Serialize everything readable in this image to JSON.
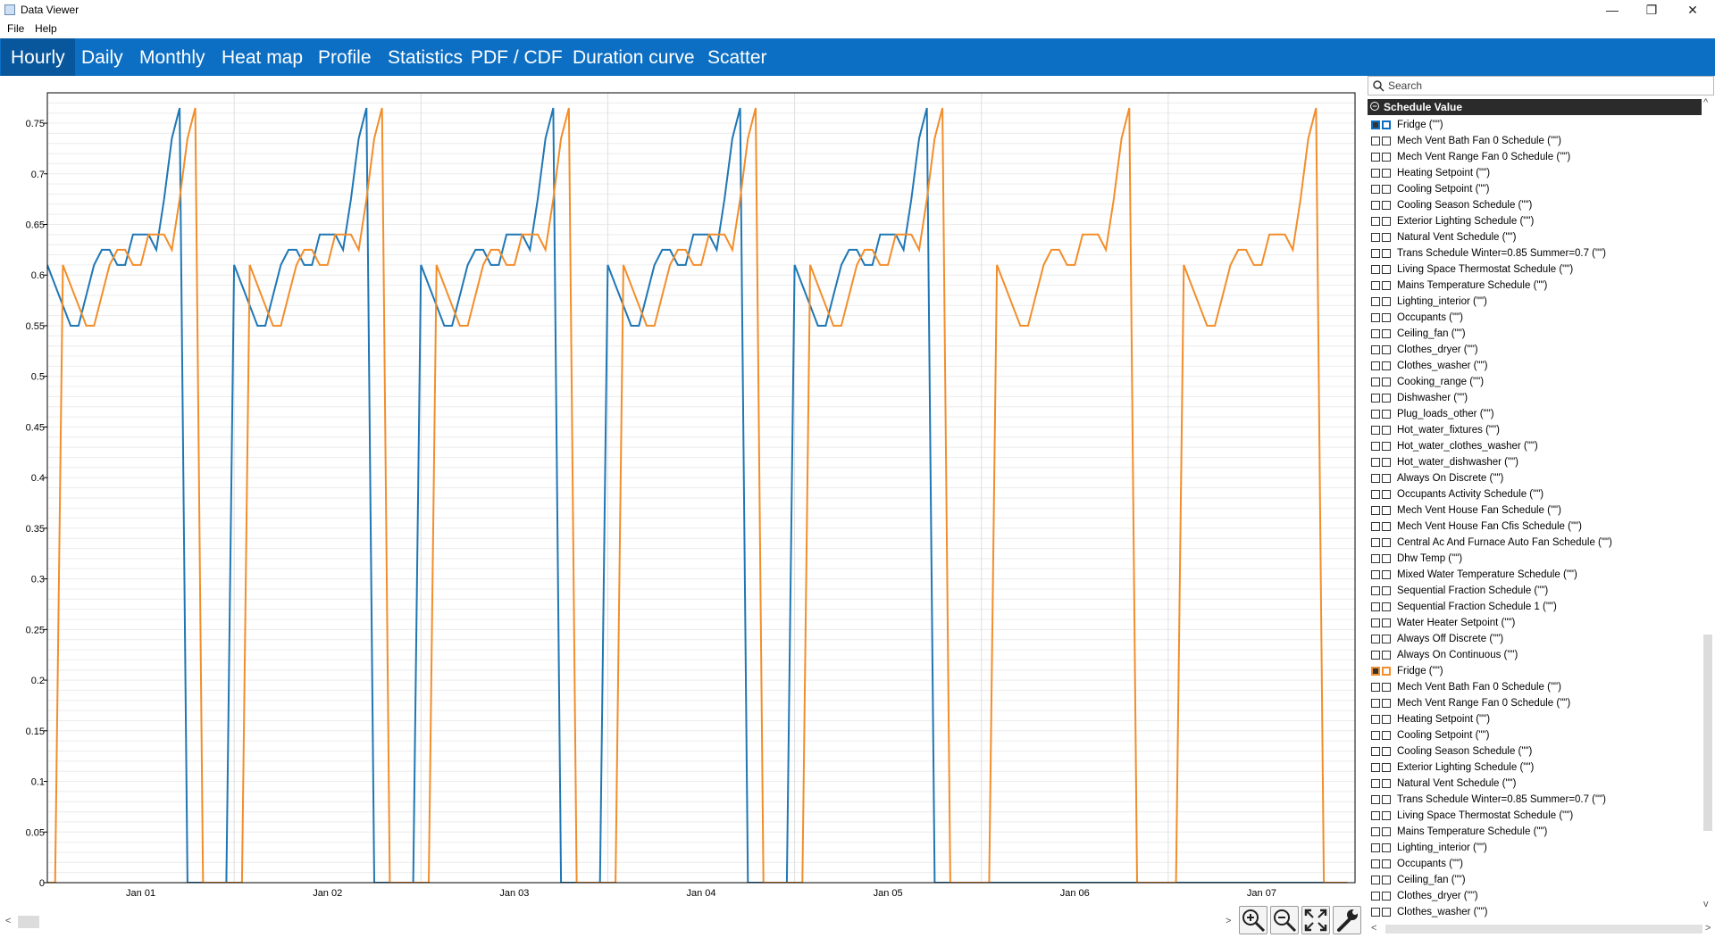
{
  "window": {
    "title": "Data Viewer",
    "minimize": "—",
    "restore": "❐",
    "close": "✕"
  },
  "menu": [
    "File",
    "Help"
  ],
  "tabs": [
    {
      "label": "Hourly",
      "active": true
    },
    {
      "label": "Daily"
    },
    {
      "label": "Monthly"
    },
    {
      "label": "Heat map"
    },
    {
      "label": "Profile"
    },
    {
      "label": "Statistics"
    },
    {
      "label": "PDF / CDF"
    },
    {
      "label": "Duration curve"
    },
    {
      "label": "Scatter"
    }
  ],
  "search": {
    "placeholder": "Search"
  },
  "group": {
    "label": "Schedule Value",
    "icon": "collapse-icon"
  },
  "series_list": [
    "Fridge (\"\")",
    "Mech Vent Bath Fan 0 Schedule (\"\")",
    "Mech Vent Range Fan 0 Schedule (\"\")",
    "Heating Setpoint (\"\")",
    "Cooling Setpoint (\"\")",
    "Cooling Season Schedule (\"\")",
    "Exterior Lighting Schedule (\"\")",
    "Natural Vent Schedule (\"\")",
    "Trans Schedule Winter=0.85 Summer=0.7 (\"\")",
    "Living Space Thermostat Schedule (\"\")",
    "Mains Temperature Schedule (\"\")",
    "Lighting_interior (\"\")",
    "Occupants (\"\")",
    "Ceiling_fan (\"\")",
    "Clothes_dryer (\"\")",
    "Clothes_washer (\"\")",
    "Cooking_range (\"\")",
    "Dishwasher (\"\")",
    "Plug_loads_other (\"\")",
    "Hot_water_fixtures (\"\")",
    "Hot_water_clothes_washer (\"\")",
    "Hot_water_dishwasher (\"\")",
    "Always On Discrete (\"\")",
    "Occupants Activity Schedule (\"\")",
    "Mech Vent House Fan Schedule (\"\")",
    "Mech Vent House Fan Cfis Schedule (\"\")",
    "Central Ac And Furnace Auto Fan Schedule (\"\")",
    "Dhw Temp (\"\")",
    "Mixed Water Temperature Schedule (\"\")",
    "Sequential Fraction Schedule (\"\")",
    "Sequential Fraction Schedule 1 (\"\")",
    "Water Heater Setpoint (\"\")",
    "Always Off Discrete (\"\")",
    "Always On Continuous (\"\")",
    "Fridge (\"\")",
    "Mech Vent Bath Fan 0 Schedule (\"\")",
    "Mech Vent Range Fan 0 Schedule (\"\")",
    "Heating Setpoint (\"\")",
    "Cooling Setpoint (\"\")",
    "Cooling Season Schedule (\"\")",
    "Exterior Lighting Schedule (\"\")",
    "Natural Vent Schedule (\"\")",
    "Trans Schedule Winter=0.85 Summer=0.7 (\"\")",
    "Living Space Thermostat Schedule (\"\")",
    "Mains Temperature Schedule (\"\")",
    "Lighting_interior (\"\")",
    "Occupants (\"\")",
    "Ceiling_fan (\"\")",
    "Clothes_dryer (\"\")",
    "Clothes_washer (\"\")"
  ],
  "selected": {
    "blue_index": 0,
    "orange_index": 34,
    "blue_color": "#1f77b4",
    "orange_color": "#f28e2b"
  },
  "toolbar": [
    "zoom-in-icon",
    "zoom-out-icon",
    "fit-screen-icon",
    "settings-wrench-icon"
  ],
  "chart_data": {
    "type": "line",
    "xlabel": "",
    "ylabel": "",
    "x_tick_labels": [
      "Jan 01",
      "Jan 02",
      "Jan 03",
      "Jan 04",
      "Jan 05",
      "Jan 06",
      "Jan 07"
    ],
    "x_unit": "hours",
    "xlim": [
      0,
      168
    ],
    "ylim": [
      0,
      0.78
    ],
    "y_ticks": [
      0,
      0.05,
      0.1,
      0.15,
      0.2,
      0.25,
      0.3,
      0.35,
      0.4,
      0.45,
      0.5,
      0.55,
      0.6,
      0.65,
      0.7,
      0.75
    ],
    "grid": "horizontal minor",
    "daily_profile": [
      0.61,
      0.59,
      0.57,
      0.55,
      0.55,
      0.58,
      0.61,
      0.625,
      0.625,
      0.61,
      0.61,
      0.64,
      0.64,
      0.64,
      0.625,
      0.675,
      0.735,
      0.765,
      0,
      0,
      0,
      0,
      0,
      0
    ],
    "series": [
      {
        "color": "#1f77b4",
        "days": 5,
        "offset_hours": 0
      },
      {
        "color": "#f28e2b",
        "days": 7,
        "offset_hours": 2
      }
    ]
  }
}
